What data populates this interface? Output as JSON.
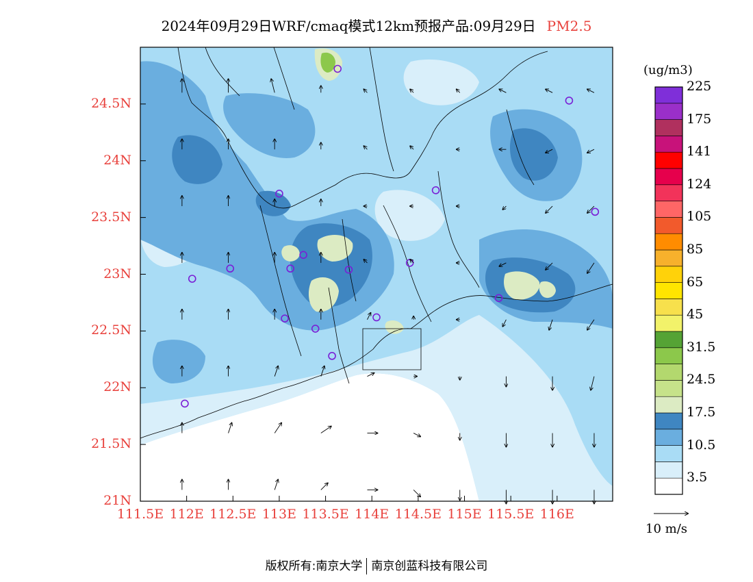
{
  "title": {
    "main": "2024年09月29日WRF/cmaq模式12km预报产品:09月29日",
    "pollutant": "PM2.5"
  },
  "map": {
    "lon_range": [
      111.5,
      116.6
    ],
    "lat_range": [
      21.0,
      25.0
    ],
    "lat_ticks": [
      {
        "value": 24.5,
        "label": "24.5N"
      },
      {
        "value": 24.0,
        "label": "24N"
      },
      {
        "value": 23.5,
        "label": "23.5N"
      },
      {
        "value": 23.0,
        "label": "23N"
      },
      {
        "value": 22.5,
        "label": "22.5N"
      },
      {
        "value": 22.0,
        "label": "22N"
      },
      {
        "value": 21.5,
        "label": "21.5N"
      },
      {
        "value": 21.0,
        "label": "21N"
      }
    ],
    "lon_ticks": [
      {
        "value": 111.5,
        "label": "111.5E"
      },
      {
        "value": 112.0,
        "label": "112E"
      },
      {
        "value": 112.5,
        "label": "112.5E"
      },
      {
        "value": 113.0,
        "label": "113E"
      },
      {
        "value": 113.5,
        "label": "113.5E"
      },
      {
        "value": 114.0,
        "label": "114E"
      },
      {
        "value": 114.5,
        "label": "114.5E"
      },
      {
        "value": 115.0,
        "label": "115E"
      },
      {
        "value": 115.5,
        "label": "115.5E"
      },
      {
        "value": 116.0,
        "label": "116E"
      }
    ],
    "field_colors": {
      "water": "#ffffff",
      "lvl1": "#d9effa",
      "lvl2": "#a9dcf5",
      "lvl3": "#6aaedf",
      "lvl4": "#3f86c1",
      "lvl5": "#dcebc3",
      "lvl6": "#c6e28a",
      "lvl7": "#8cc84b",
      "lvl8": "#55a335"
    },
    "stations": [
      {
        "lon": 113.63,
        "lat": 24.81
      },
      {
        "lon": 116.13,
        "lat": 24.53
      },
      {
        "lon": 113.0,
        "lat": 23.71
      },
      {
        "lon": 114.69,
        "lat": 23.74
      },
      {
        "lon": 116.41,
        "lat": 23.55
      },
      {
        "lon": 113.26,
        "lat": 23.17
      },
      {
        "lon": 112.47,
        "lat": 23.05
      },
      {
        "lon": 113.12,
        "lat": 23.05
      },
      {
        "lon": 113.75,
        "lat": 23.04
      },
      {
        "lon": 114.41,
        "lat": 23.1
      },
      {
        "lon": 112.06,
        "lat": 22.96
      },
      {
        "lon": 115.37,
        "lat": 22.79
      },
      {
        "lon": 113.06,
        "lat": 22.61
      },
      {
        "lon": 114.05,
        "lat": 22.62
      },
      {
        "lon": 113.39,
        "lat": 22.52
      },
      {
        "lon": 113.57,
        "lat": 22.28
      },
      {
        "lon": 111.98,
        "lat": 21.86
      }
    ],
    "wind": {
      "reference_label": "10 m/s",
      "reference_speed": 10,
      "vectors": [
        {
          "lon": 111.95,
          "lat": 24.6,
          "u": 0,
          "v": 4
        },
        {
          "lon": 112.45,
          "lat": 24.6,
          "u": 0,
          "v": 4
        },
        {
          "lon": 112.95,
          "lat": 24.6,
          "u": -1,
          "v": 4
        },
        {
          "lon": 113.45,
          "lat": 24.6,
          "u": 0,
          "v": 2
        },
        {
          "lon": 113.95,
          "lat": 24.6,
          "u": -1,
          "v": 1
        },
        {
          "lon": 114.45,
          "lat": 24.6,
          "u": -1,
          "v": 1
        },
        {
          "lon": 114.95,
          "lat": 24.6,
          "u": -1,
          "v": 1
        },
        {
          "lon": 115.45,
          "lat": 24.6,
          "u": -2,
          "v": 1
        },
        {
          "lon": 115.95,
          "lat": 24.6,
          "u": -2,
          "v": 1
        },
        {
          "lon": 116.4,
          "lat": 24.6,
          "u": -2,
          "v": 1
        },
        {
          "lon": 111.95,
          "lat": 24.1,
          "u": 0,
          "v": 3
        },
        {
          "lon": 112.45,
          "lat": 24.1,
          "u": 0,
          "v": 3
        },
        {
          "lon": 112.95,
          "lat": 24.1,
          "u": 0,
          "v": 3
        },
        {
          "lon": 113.45,
          "lat": 24.1,
          "u": 0,
          "v": 2
        },
        {
          "lon": 113.95,
          "lat": 24.1,
          "u": -1,
          "v": 1
        },
        {
          "lon": 114.45,
          "lat": 24.1,
          "u": -1,
          "v": 1
        },
        {
          "lon": 114.95,
          "lat": 24.1,
          "u": -1,
          "v": 0
        },
        {
          "lon": 115.45,
          "lat": 24.1,
          "u": -2,
          "v": 0
        },
        {
          "lon": 115.95,
          "lat": 24.1,
          "u": -2,
          "v": -1
        },
        {
          "lon": 116.4,
          "lat": 24.1,
          "u": -2,
          "v": -1
        },
        {
          "lon": 111.95,
          "lat": 23.6,
          "u": 0,
          "v": 3
        },
        {
          "lon": 112.45,
          "lat": 23.6,
          "u": 0,
          "v": 3
        },
        {
          "lon": 112.95,
          "lat": 23.6,
          "u": 0,
          "v": 2
        },
        {
          "lon": 113.45,
          "lat": 23.6,
          "u": 0,
          "v": 2
        },
        {
          "lon": 113.95,
          "lat": 23.6,
          "u": -1,
          "v": 0
        },
        {
          "lon": 114.45,
          "lat": 23.6,
          "u": -1,
          "v": 0
        },
        {
          "lon": 114.95,
          "lat": 23.6,
          "u": -1,
          "v": 0
        },
        {
          "lon": 115.45,
          "lat": 23.6,
          "u": -1,
          "v": -1
        },
        {
          "lon": 115.95,
          "lat": 23.6,
          "u": -2,
          "v": -2
        },
        {
          "lon": 116.4,
          "lat": 23.6,
          "u": -2,
          "v": -2
        },
        {
          "lon": 111.95,
          "lat": 23.1,
          "u": 0,
          "v": 3
        },
        {
          "lon": 112.45,
          "lat": 23.1,
          "u": 0,
          "v": 3
        },
        {
          "lon": 112.95,
          "lat": 23.1,
          "u": 0,
          "v": 3
        },
        {
          "lon": 113.45,
          "lat": 23.1,
          "u": 0,
          "v": 3
        },
        {
          "lon": 113.95,
          "lat": 23.1,
          "u": -1,
          "v": 1
        },
        {
          "lon": 114.45,
          "lat": 23.1,
          "u": -1,
          "v": 1
        },
        {
          "lon": 114.95,
          "lat": 23.1,
          "u": -1,
          "v": 0
        },
        {
          "lon": 115.45,
          "lat": 23.1,
          "u": -2,
          "v": -1
        },
        {
          "lon": 115.95,
          "lat": 23.1,
          "u": -2,
          "v": -2
        },
        {
          "lon": 116.4,
          "lat": 23.1,
          "u": -2,
          "v": -3
        },
        {
          "lon": 111.95,
          "lat": 22.6,
          "u": 0,
          "v": 3
        },
        {
          "lon": 112.45,
          "lat": 22.6,
          "u": 0,
          "v": 3
        },
        {
          "lon": 112.95,
          "lat": 22.6,
          "u": 0,
          "v": 3
        },
        {
          "lon": 113.45,
          "lat": 22.6,
          "u": 0,
          "v": 3
        },
        {
          "lon": 113.95,
          "lat": 22.6,
          "u": 1,
          "v": 2
        },
        {
          "lon": 114.45,
          "lat": 22.6,
          "u": 0,
          "v": 1
        },
        {
          "lon": 114.95,
          "lat": 22.6,
          "u": -1,
          "v": 0
        },
        {
          "lon": 115.45,
          "lat": 22.6,
          "u": -1,
          "v": -2
        },
        {
          "lon": 115.95,
          "lat": 22.6,
          "u": -1,
          "v": -3
        },
        {
          "lon": 116.4,
          "lat": 22.6,
          "u": -2,
          "v": -3
        },
        {
          "lon": 111.95,
          "lat": 22.1,
          "u": 0,
          "v": 3
        },
        {
          "lon": 112.45,
          "lat": 22.1,
          "u": 0,
          "v": 3
        },
        {
          "lon": 112.95,
          "lat": 22.1,
          "u": 1,
          "v": 3
        },
        {
          "lon": 113.45,
          "lat": 22.1,
          "u": 1,
          "v": 3
        },
        {
          "lon": 113.95,
          "lat": 22.1,
          "u": 2,
          "v": 1
        },
        {
          "lon": 114.45,
          "lat": 22.1,
          "u": 1,
          "v": 0
        },
        {
          "lon": 114.95,
          "lat": 22.1,
          "u": 0,
          "v": -1
        },
        {
          "lon": 115.45,
          "lat": 22.1,
          "u": 0,
          "v": -3
        },
        {
          "lon": 115.95,
          "lat": 22.1,
          "u": 0,
          "v": -4
        },
        {
          "lon": 116.4,
          "lat": 22.1,
          "u": -1,
          "v": -4
        },
        {
          "lon": 111.95,
          "lat": 21.6,
          "u": 0,
          "v": 3
        },
        {
          "lon": 112.45,
          "lat": 21.6,
          "u": 1,
          "v": 3
        },
        {
          "lon": 112.95,
          "lat": 21.6,
          "u": 2,
          "v": 3
        },
        {
          "lon": 113.45,
          "lat": 21.6,
          "u": 3,
          "v": 2
        },
        {
          "lon": 113.95,
          "lat": 21.6,
          "u": 3,
          "v": 0
        },
        {
          "lon": 114.45,
          "lat": 21.6,
          "u": 2,
          "v": -1
        },
        {
          "lon": 114.95,
          "lat": 21.6,
          "u": 0,
          "v": -2
        },
        {
          "lon": 115.45,
          "lat": 21.6,
          "u": 0,
          "v": -4
        },
        {
          "lon": 115.95,
          "lat": 21.6,
          "u": 0,
          "v": -4
        },
        {
          "lon": 116.4,
          "lat": 21.6,
          "u": 0,
          "v": -4
        },
        {
          "lon": 111.95,
          "lat": 21.1,
          "u": 0,
          "v": 3
        },
        {
          "lon": 112.45,
          "lat": 21.1,
          "u": 0,
          "v": 3
        },
        {
          "lon": 112.95,
          "lat": 21.1,
          "u": 1,
          "v": 3
        },
        {
          "lon": 113.45,
          "lat": 21.1,
          "u": 2,
          "v": 2
        },
        {
          "lon": 113.95,
          "lat": 21.1,
          "u": 3,
          "v": 0
        },
        {
          "lon": 114.45,
          "lat": 21.1,
          "u": 2,
          "v": -2
        },
        {
          "lon": 114.95,
          "lat": 21.1,
          "u": 0,
          "v": -3
        },
        {
          "lon": 115.45,
          "lat": 21.1,
          "u": 0,
          "v": -4
        },
        {
          "lon": 115.95,
          "lat": 21.1,
          "u": 0,
          "v": -4
        },
        {
          "lon": 116.4,
          "lat": 21.1,
          "u": 0,
          "v": -4
        }
      ]
    }
  },
  "colorbar": {
    "units": "(ug/m3)",
    "colors": [
      "#ffffff",
      "#d9effa",
      "#a9dcf5",
      "#6aaedf",
      "#3f86c1",
      "#dcebc3",
      "#c6e28a",
      "#b3d86e",
      "#8cc84b",
      "#55a335",
      "#f2f26a",
      "#f7e04c",
      "#ffe500",
      "#ffd20a",
      "#f7b12c",
      "#ff8c00",
      "#f25a2c",
      "#ff6666",
      "#f2335a",
      "#e6004c",
      "#ff0000",
      "#c8127a",
      "#b0305e",
      "#9a2fc9",
      "#7f2fd9"
    ],
    "labels": [
      "3.5",
      "10.5",
      "17.5",
      "24.5",
      "31.5",
      "45",
      "65",
      "85",
      "105",
      "124",
      "141",
      "175",
      "225"
    ]
  },
  "footer": {
    "left": "版权所有:南京大学",
    "right": "南京创蓝科技有限公司"
  }
}
